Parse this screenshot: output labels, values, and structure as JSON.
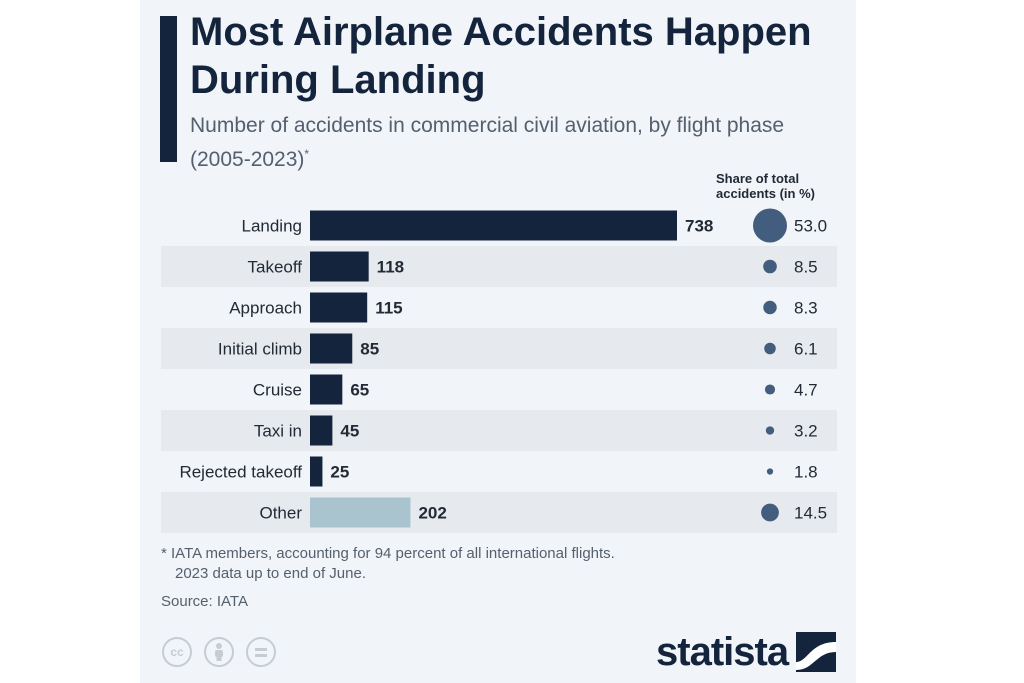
{
  "title": "Most Airplane Accidents Happen During Landing",
  "subtitle": "Number of accidents in commercial civil aviation, by flight phase (2005-2023)",
  "subtitle_marker": "*",
  "share_header": "Share of total accidents (in %)",
  "footnote_line1": "* IATA members, accounting for 94 percent of all international flights.",
  "footnote_line2": "2023 data up to end of June.",
  "source": "Source: IATA",
  "logo": "statista",
  "license_icons": [
    "cc-icon",
    "attribution-icon",
    "no-derivatives-icon"
  ],
  "license_icon_texts": {
    "cc": "cc"
  },
  "colors": {
    "bar": "#13243c",
    "bar_other": "#a9c3cf",
    "dot": "#425d7d",
    "row_band": "#e6eaef",
    "title": "#13243c"
  },
  "chart_data": {
    "type": "bar",
    "orientation": "horizontal",
    "title": "Most Airplane Accidents Happen During Landing",
    "subtitle": "Number of accidents in commercial civil aviation, by flight phase (2005-2023)*",
    "categories": [
      "Landing",
      "Takeoff",
      "Approach",
      "Initial climb",
      "Cruise",
      "Taxi in",
      "Rejected takeoff",
      "Other"
    ],
    "series": [
      {
        "values": [
          738,
          118,
          115,
          85,
          65,
          45,
          25,
          202
        ]
      },
      {
        "name": "Share of total accidents (in %)",
        "values": [
          53.0,
          8.5,
          8.3,
          6.1,
          4.7,
          3.2,
          1.8,
          14.5
        ],
        "display": [
          "53.0",
          "8.5",
          "8.3",
          "6.1",
          "4.7",
          "3.2",
          "1.8",
          "14.5"
        ]
      }
    ],
    "xlim": [
      0,
      738
    ],
    "grid": false,
    "highlighted_category": "Other"
  }
}
